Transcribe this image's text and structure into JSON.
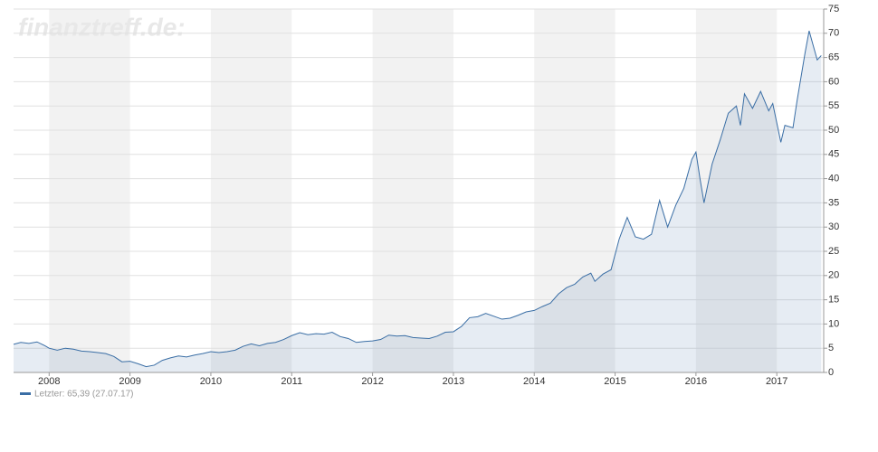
{
  "chart_data": {
    "type": "line",
    "watermark": "finanztreff.de:",
    "x": [
      2007.56,
      2007.65,
      2007.75,
      2007.85,
      2007.95,
      2008.0,
      2008.1,
      2008.2,
      2008.3,
      2008.4,
      2008.5,
      2008.6,
      2008.7,
      2008.8,
      2008.9,
      2009.0,
      2009.1,
      2009.2,
      2009.3,
      2009.4,
      2009.5,
      2009.6,
      2009.7,
      2009.8,
      2009.9,
      2010.0,
      2010.1,
      2010.2,
      2010.3,
      2010.4,
      2010.5,
      2010.6,
      2010.7,
      2010.8,
      2010.9,
      2011.0,
      2011.1,
      2011.2,
      2011.3,
      2011.4,
      2011.5,
      2011.6,
      2011.7,
      2011.8,
      2011.9,
      2012.0,
      2012.1,
      2012.2,
      2012.3,
      2012.4,
      2012.5,
      2012.6,
      2012.7,
      2012.8,
      2012.9,
      2013.0,
      2013.1,
      2013.2,
      2013.3,
      2013.4,
      2013.5,
      2013.6,
      2013.7,
      2013.8,
      2013.9,
      2014.0,
      2014.1,
      2014.2,
      2014.3,
      2014.4,
      2014.5,
      2014.6,
      2014.7,
      2014.75,
      2014.85,
      2014.95,
      2015.05,
      2015.15,
      2015.25,
      2015.35,
      2015.45,
      2015.55,
      2015.65,
      2015.75,
      2015.85,
      2015.95,
      2016.0,
      2016.05,
      2016.1,
      2016.2,
      2016.3,
      2016.4,
      2016.5,
      2016.55,
      2016.6,
      2016.7,
      2016.8,
      2016.9,
      2016.95,
      2017.05,
      2017.1,
      2017.2,
      2017.25,
      2017.35,
      2017.4,
      2017.45,
      2017.5,
      2017.55
    ],
    "series": [
      {
        "name": "Letzter: 65,39 (27.07.17)",
        "color": "#3a6ea5",
        "values": [
          5.8,
          6.2,
          6.0,
          6.3,
          5.5,
          5.0,
          4.6,
          5.0,
          4.8,
          4.4,
          4.3,
          4.1,
          3.9,
          3.3,
          2.2,
          2.3,
          1.8,
          1.2,
          1.5,
          2.5,
          3.0,
          3.4,
          3.2,
          3.6,
          3.9,
          4.3,
          4.1,
          4.3,
          4.6,
          5.4,
          5.9,
          5.5,
          6.0,
          6.2,
          6.8,
          7.6,
          8.2,
          7.8,
          8.0,
          7.9,
          8.3,
          7.4,
          7.0,
          6.2,
          6.4,
          6.5,
          6.8,
          7.7,
          7.5,
          7.6,
          7.2,
          7.1,
          7.0,
          7.5,
          8.3,
          8.4,
          9.5,
          11.3,
          11.5,
          12.2,
          11.6,
          11.0,
          11.2,
          11.8,
          12.5,
          12.8,
          13.6,
          14.3,
          16.2,
          17.5,
          18.2,
          19.7,
          20.5,
          18.8,
          20.3,
          21.2,
          27.5,
          32.0,
          28.0,
          27.5,
          28.5,
          35.5,
          30.0,
          34.5,
          38.0,
          44.0,
          45.5,
          40.0,
          35.0,
          43.0,
          48.0,
          53.5,
          55.0,
          51.0,
          57.5,
          54.5,
          58.0,
          54.0,
          55.5,
          47.5,
          51.0,
          50.5,
          56.0,
          66.0,
          70.5,
          67.5,
          64.5,
          65.4
        ]
      }
    ],
    "xlim": [
      2007.56,
      2017.58
    ],
    "xticks": [
      2008,
      2009,
      2010,
      2011,
      2012,
      2013,
      2014,
      2015,
      2016,
      2017
    ],
    "ylim": [
      0,
      75
    ],
    "yticks": [
      0,
      5,
      10,
      15,
      20,
      25,
      30,
      35,
      40,
      45,
      50,
      55,
      60,
      65,
      70,
      75
    ],
    "grid": true
  }
}
